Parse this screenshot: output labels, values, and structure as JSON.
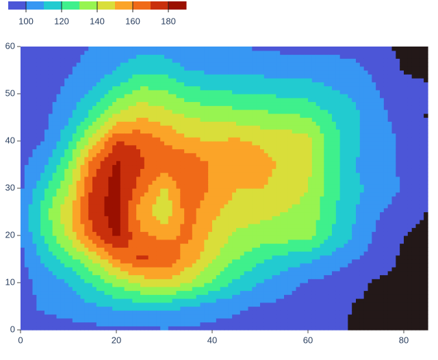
{
  "chart_data": {
    "type": "contour",
    "x": [
      0,
      5,
      10,
      15,
      20,
      25,
      30,
      35,
      40,
      45,
      50,
      55,
      60,
      65,
      70,
      75,
      80,
      85
    ],
    "y": [
      0,
      5,
      10,
      15,
      20,
      25,
      30,
      35,
      40,
      45,
      50,
      55,
      60
    ],
    "z": [
      [
        95,
        95,
        96,
        97,
        97,
        98,
        99,
        98,
        97,
        96,
        96,
        95,
        94,
        93,
        88,
        88,
        88,
        88
      ],
      [
        97,
        102,
        105,
        108,
        112,
        114,
        113,
        110,
        105,
        102,
        99,
        97,
        96,
        94,
        89,
        88,
        88,
        88
      ],
      [
        96,
        103,
        110,
        122,
        133,
        142,
        148,
        140,
        128,
        118,
        110,
        104,
        99,
        96,
        93,
        88,
        88,
        88
      ],
      [
        97,
        112,
        125,
        140,
        160,
        172,
        168,
        155,
        142,
        130,
        122,
        116,
        112,
        106,
        100,
        95,
        88,
        88
      ],
      [
        100,
        122,
        142,
        168,
        182,
        162,
        158,
        162,
        148,
        138,
        136,
        135,
        134,
        120,
        108,
        97,
        90,
        88
      ],
      [
        103,
        126,
        148,
        175,
        185,
        155,
        142,
        165,
        152,
        146,
        143,
        140,
        137,
        122,
        110,
        100,
        95,
        89
      ],
      [
        98,
        118,
        138,
        172,
        185,
        165,
        148,
        168,
        158,
        150,
        150,
        146,
        140,
        124,
        112,
        106,
        99,
        96
      ],
      [
        97,
        108,
        130,
        165,
        182,
        172,
        165,
        170,
        158,
        160,
        155,
        147,
        143,
        125,
        110,
        103,
        98,
        96
      ],
      [
        95,
        100,
        118,
        145,
        170,
        168,
        160,
        152,
        150,
        152,
        148,
        146,
        145,
        125,
        112,
        104,
        98,
        95
      ],
      [
        95,
        98,
        108,
        125,
        143,
        150,
        146,
        140,
        138,
        136,
        134,
        133,
        130,
        120,
        112,
        102,
        96,
        89
      ],
      [
        94,
        96,
        103,
        112,
        125,
        135,
        132,
        125,
        122,
        121,
        120,
        118,
        117,
        112,
        108,
        100,
        95,
        92
      ],
      [
        94,
        95,
        99,
        104,
        110,
        118,
        117,
        110,
        108,
        108,
        107,
        105,
        106,
        104,
        102,
        97,
        89,
        88
      ],
      [
        94,
        95,
        97,
        100,
        104,
        106,
        105,
        102,
        100,
        100,
        99,
        98,
        98,
        98,
        97,
        92,
        88,
        88
      ]
    ],
    "levels": [
      90,
      100,
      110,
      120,
      130,
      140,
      150,
      160,
      170,
      180,
      190
    ],
    "colors": [
      "#4c56d7",
      "#3797f3",
      "#22cbd0",
      "#3ff08c",
      "#97f451",
      "#d9de3a",
      "#fba428",
      "#f06a18",
      "#c9300c",
      "#9a1000"
    ],
    "below_color": "#231818",
    "xlim": [
      0,
      85
    ],
    "ylim": [
      0,
      60
    ],
    "xticks": [
      0,
      20,
      40,
      60,
      80
    ],
    "yticks": [
      0,
      10,
      20,
      30,
      40,
      50,
      60
    ],
    "colorbar": {
      "lim": [
        90,
        190
      ],
      "ticks": [
        100,
        120,
        140,
        160,
        180
      ]
    }
  }
}
